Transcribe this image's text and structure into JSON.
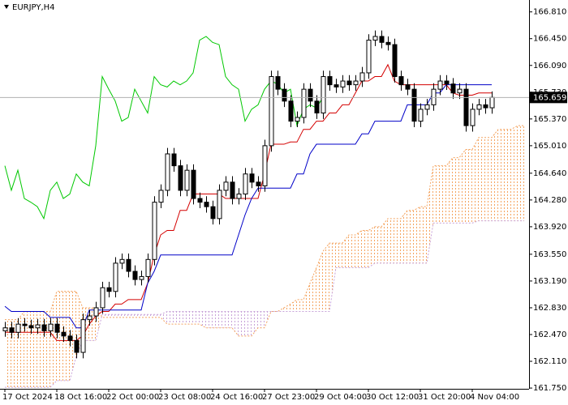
{
  "chart_data": {
    "type": "candlestick",
    "symbol_label": "EURJPY,H4",
    "categories": [
      "17 Oct 2024",
      null,
      null,
      null,
      null,
      null,
      null,
      null,
      "18 Oct 16:00",
      null,
      null,
      null,
      null,
      null,
      null,
      null,
      "22 Oct 00:00",
      null,
      null,
      null,
      null,
      null,
      null,
      null,
      "23 Oct 08:00",
      null,
      null,
      null,
      null,
      null,
      null,
      null,
      "24 Oct 16:00",
      null,
      null,
      null,
      null,
      null,
      null,
      null,
      "27 Oct 23:00",
      null,
      null,
      null,
      null,
      null,
      null,
      null,
      "29 Oct 04:00",
      null,
      null,
      null,
      null,
      null,
      null,
      null,
      "30 Oct 12:00",
      null,
      null,
      null,
      null,
      null,
      null,
      null,
      "31 Oct 20:00",
      null,
      null,
      null,
      null,
      null,
      null,
      null,
      "4 Nov 04:00",
      null,
      null,
      null,
      null,
      null,
      null,
      null,
      null
    ],
    "open": [
      162.52,
      162.56,
      162.5,
      162.61,
      162.59,
      162.56,
      162.6,
      162.52,
      162.61,
      162.5,
      162.45,
      162.39,
      162.23,
      162.67,
      162.72,
      162.83,
      163.1,
      163.05,
      163.43,
      163.48,
      163.32,
      163.21,
      163.25,
      163.48,
      164.25,
      164.41,
      164.9,
      164.74,
      164.41,
      164.68,
      164.3,
      164.25,
      164.19,
      164.03,
      164.41,
      164.52,
      164.3,
      164.36,
      164.63,
      164.52,
      164.47,
      165.01,
      165.94,
      165.77,
      165.61,
      165.34,
      165.39,
      165.77,
      165.61,
      165.45,
      165.94,
      165.83,
      165.8,
      165.88,
      165.83,
      165.88,
      165.99,
      166.43,
      166.48,
      166.4,
      166.37,
      165.94,
      165.83,
      165.77,
      165.34,
      165.5,
      165.56,
      165.77,
      165.88,
      165.84,
      165.72,
      165.77,
      165.28,
      165.5,
      165.56,
      165.52,
      null,
      null,
      null,
      null,
      null
    ],
    "high": [
      162.64,
      162.64,
      162.69,
      162.69,
      162.67,
      162.68,
      162.68,
      162.69,
      162.69,
      162.58,
      162.53,
      162.47,
      162.75,
      162.8,
      162.91,
      163.18,
      163.18,
      163.51,
      163.56,
      163.56,
      163.4,
      163.33,
      163.56,
      164.33,
      164.49,
      164.98,
      164.98,
      164.82,
      164.76,
      164.76,
      164.38,
      164.33,
      164.27,
      164.49,
      164.6,
      164.6,
      164.44,
      164.71,
      164.71,
      164.6,
      165.09,
      166.02,
      166.02,
      165.85,
      165.69,
      165.47,
      165.85,
      165.85,
      165.69,
      166.02,
      166.02,
      165.91,
      165.96,
      165.96,
      165.96,
      166.07,
      166.51,
      166.56,
      166.56,
      166.48,
      166.45,
      166.02,
      165.91,
      165.85,
      165.58,
      165.64,
      165.85,
      165.96,
      165.96,
      165.92,
      165.85,
      165.85,
      165.58,
      165.64,
      165.64,
      165.74,
      null,
      null,
      null,
      null,
      null
    ],
    "low": [
      162.44,
      162.42,
      162.42,
      162.51,
      162.48,
      162.48,
      162.44,
      162.44,
      162.42,
      162.37,
      162.31,
      162.15,
      162.15,
      162.59,
      162.64,
      162.75,
      162.97,
      162.97,
      163.35,
      163.24,
      163.13,
      163.13,
      163.17,
      163.4,
      164.17,
      164.33,
      164.66,
      164.33,
      164.33,
      164.22,
      164.17,
      164.11,
      163.95,
      163.95,
      164.33,
      164.22,
      164.22,
      164.28,
      164.44,
      164.39,
      164.39,
      164.93,
      165.69,
      165.53,
      165.26,
      165.26,
      165.31,
      165.53,
      165.37,
      165.37,
      165.75,
      165.72,
      165.72,
      165.75,
      165.75,
      165.8,
      165.91,
      166.35,
      166.32,
      166.29,
      165.86,
      165.75,
      165.69,
      165.26,
      165.26,
      165.42,
      165.48,
      165.69,
      165.76,
      165.64,
      165.64,
      165.2,
      165.2,
      165.42,
      165.44,
      165.44,
      null,
      null,
      null,
      null,
      null
    ],
    "close": [
      162.56,
      162.5,
      162.61,
      162.59,
      162.56,
      162.6,
      162.52,
      162.61,
      162.5,
      162.45,
      162.39,
      162.23,
      162.67,
      162.72,
      162.83,
      163.1,
      163.05,
      163.43,
      163.48,
      163.32,
      163.21,
      163.25,
      163.48,
      164.25,
      164.41,
      164.9,
      164.74,
      164.41,
      164.68,
      164.3,
      164.25,
      164.19,
      164.03,
      164.41,
      164.52,
      164.3,
      164.36,
      164.63,
      164.52,
      164.47,
      165.01,
      165.94,
      165.77,
      165.61,
      165.34,
      165.39,
      165.77,
      165.61,
      165.45,
      165.94,
      165.83,
      165.8,
      165.88,
      165.83,
      165.88,
      165.99,
      166.43,
      166.48,
      166.4,
      166.37,
      165.94,
      165.83,
      165.77,
      165.34,
      165.5,
      165.56,
      165.77,
      165.88,
      165.84,
      165.72,
      165.77,
      165.28,
      165.5,
      165.56,
      165.52,
      165.66,
      null,
      null,
      null,
      null,
      null
    ],
    "bull_color": "#ffffff",
    "bear_color": "#000000",
    "series": [
      {
        "color": "#d40000",
        "values": [
          162.5,
          162.5,
          162.5,
          162.5,
          162.5,
          162.5,
          162.5,
          162.5,
          162.39,
          162.39,
          162.39,
          162.39,
          162.45,
          162.61,
          162.72,
          162.78,
          162.78,
          162.88,
          162.88,
          162.94,
          162.94,
          162.94,
          163.16,
          163.54,
          163.81,
          163.87,
          163.87,
          164.14,
          164.14,
          164.36,
          164.36,
          164.36,
          164.36,
          164.36,
          164.3,
          164.3,
          164.3,
          164.3,
          164.3,
          164.3,
          164.63,
          165.03,
          165.03,
          165.03,
          165.06,
          165.06,
          165.23,
          165.23,
          165.34,
          165.34,
          165.45,
          165.45,
          165.56,
          165.56,
          165.72,
          165.88,
          165.88,
          165.94,
          165.94,
          166.1,
          165.88,
          165.83,
          165.83,
          165.83,
          165.83,
          165.83,
          165.83,
          165.83,
          165.83,
          165.72,
          165.69,
          165.69,
          165.69,
          165.72,
          165.72,
          165.72,
          null,
          null,
          null,
          null,
          null
        ]
      },
      {
        "color": "#0000c8",
        "values": [
          162.85,
          162.78,
          162.78,
          162.78,
          162.78,
          162.78,
          162.78,
          162.7,
          162.7,
          162.7,
          162.7,
          162.56,
          162.56,
          162.8,
          162.8,
          162.8,
          162.8,
          162.8,
          162.8,
          162.8,
          162.8,
          162.8,
          163.16,
          163.32,
          163.54,
          163.54,
          163.54,
          163.54,
          163.54,
          163.54,
          163.54,
          163.54,
          163.54,
          163.54,
          163.54,
          163.54,
          163.81,
          164.08,
          164.3,
          164.44,
          164.44,
          164.44,
          164.44,
          164.44,
          164.44,
          164.63,
          164.63,
          164.9,
          165.03,
          165.03,
          165.03,
          165.03,
          165.03,
          165.03,
          165.03,
          165.17,
          165.17,
          165.34,
          165.34,
          165.34,
          165.34,
          165.34,
          165.56,
          165.56,
          165.56,
          165.56,
          165.72,
          165.72,
          165.83,
          165.83,
          165.83,
          165.83,
          165.83,
          165.83,
          165.83,
          165.83,
          null,
          null,
          null,
          null,
          null
        ]
      },
      {
        "color": "#00c800",
        "values": [
          164.74,
          164.41,
          164.68,
          164.3,
          164.25,
          164.19,
          164.03,
          164.41,
          164.52,
          164.3,
          164.36,
          164.63,
          164.52,
          164.47,
          165.01,
          165.94,
          165.77,
          165.61,
          165.34,
          165.39,
          165.77,
          165.61,
          165.45,
          165.94,
          165.83,
          165.8,
          165.88,
          165.83,
          165.88,
          165.99,
          166.43,
          166.48,
          166.4,
          166.37,
          165.94,
          165.83,
          165.77,
          165.34,
          165.5,
          165.56,
          165.77,
          165.88,
          165.84,
          165.72,
          165.77,
          165.28,
          165.5,
          165.56,
          165.52,
          165.66,
          null,
          null,
          null,
          null,
          null,
          null,
          null,
          null,
          null,
          null,
          null,
          null,
          null,
          null,
          null,
          null,
          null,
          null,
          null,
          null,
          null,
          null,
          null,
          null,
          null,
          null,
          null,
          null,
          null,
          null,
          null
        ]
      }
    ],
    "cloud": {
      "span_a": [
        162.67,
        162.67,
        162.67,
        162.78,
        162.78,
        162.78,
        162.78,
        162.78,
        163.05,
        163.05,
        163.05,
        163.05,
        162.83,
        162.83,
        162.83,
        162.7,
        162.7,
        162.7,
        162.7,
        162.7,
        162.7,
        162.7,
        162.7,
        162.7,
        162.7,
        162.61,
        162.61,
        162.61,
        162.61,
        162.61,
        162.61,
        162.56,
        162.56,
        162.56,
        162.56,
        162.56,
        162.45,
        162.45,
        162.45,
        162.56,
        162.56,
        162.78,
        162.78,
        162.83,
        162.88,
        162.94,
        162.94,
        163.16,
        163.37,
        163.59,
        163.7,
        163.7,
        163.7,
        163.81,
        163.81,
        163.87,
        163.87,
        163.92,
        163.92,
        164.03,
        164.03,
        164.03,
        164.14,
        164.14,
        164.19,
        164.19,
        164.74,
        164.74,
        164.74,
        164.85,
        164.85,
        164.96,
        164.96,
        165.12,
        165.12,
        165.12,
        165.23,
        165.23,
        165.23,
        165.28,
        165.28
      ],
      "span_b": [
        161.76,
        161.76,
        161.76,
        161.76,
        161.76,
        161.76,
        161.76,
        161.76,
        161.85,
        161.85,
        161.85,
        162.18,
        162.39,
        162.39,
        162.39,
        162.74,
        162.74,
        162.74,
        162.74,
        162.74,
        162.74,
        162.74,
        162.74,
        162.74,
        162.74,
        162.78,
        162.78,
        162.78,
        162.78,
        162.78,
        162.78,
        162.78,
        162.78,
        162.78,
        162.78,
        162.78,
        162.78,
        162.78,
        162.78,
        162.78,
        162.78,
        162.78,
        162.78,
        162.78,
        162.78,
        162.78,
        162.78,
        162.78,
        162.78,
        162.78,
        162.78,
        163.37,
        163.37,
        163.37,
        163.37,
        163.37,
        163.37,
        163.43,
        163.43,
        163.43,
        163.43,
        163.43,
        163.43,
        163.43,
        163.43,
        163.43,
        163.97,
        163.97,
        163.97,
        163.97,
        163.97,
        163.97,
        163.97,
        164.0,
        164.0,
        164.0,
        164.0,
        164.0,
        164.0,
        164.0,
        164.0
      ],
      "color_a": "#f4a460",
      "color_b": "#c8a2d8"
    },
    "last_price": 165.659,
    "ylim": [
      161.74,
      166.97
    ],
    "yticks": [
      {
        "value": 166.81,
        "label": "166.810"
      },
      {
        "value": 166.45,
        "label": "166.450"
      },
      {
        "value": 166.09,
        "label": "166.090"
      },
      {
        "value": 165.73,
        "label": "165.730"
      },
      {
        "value": 165.37,
        "label": "165.370"
      },
      {
        "value": 165.01,
        "label": "165.010"
      },
      {
        "value": 164.64,
        "label": "164.640"
      },
      {
        "value": 164.28,
        "label": "164.280"
      },
      {
        "value": 163.92,
        "label": "163.920"
      },
      {
        "value": 163.55,
        "label": "163.550"
      },
      {
        "value": 163.19,
        "label": "163.190"
      },
      {
        "value": 162.83,
        "label": "162.830"
      },
      {
        "value": 162.47,
        "label": "162.470"
      },
      {
        "value": 162.11,
        "label": "162.110"
      },
      {
        "value": 161.75,
        "label": "161.750"
      }
    ],
    "grid": false
  }
}
